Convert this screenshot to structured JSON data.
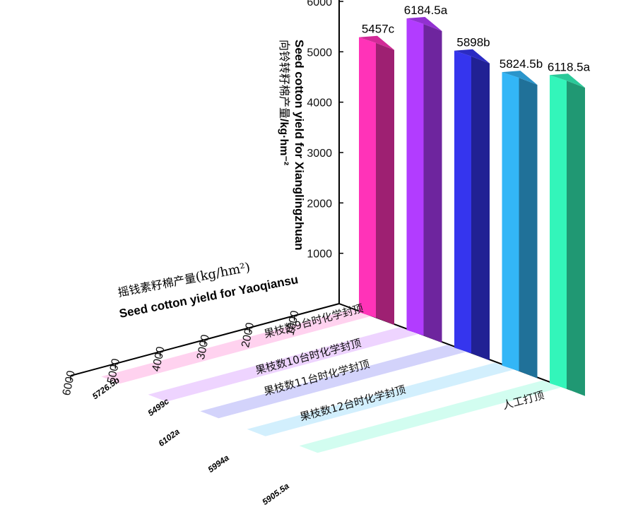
{
  "chart_data": {
    "type": "bar",
    "categories": [
      "果枝数9台时化学封顶",
      "果枝数10台时化学封顶",
      "果枝数11台时化学封顶",
      "果枝数12台时化学封顶",
      "人工打顶"
    ],
    "series": [
      {
        "name": "Xianglingzhuan",
        "values": [
          5457,
          6184.5,
          5898,
          5824.5,
          6118.5
        ],
        "labels": [
          "5457c",
          "6184.5a",
          "5898b",
          "5824.5b",
          "6118.5a"
        ]
      },
      {
        "name": "Yaoqiansu",
        "values": [
          5726.5,
          5499,
          6102,
          5994,
          5905.5
        ],
        "labels": [
          "5726.5b",
          "5499c",
          "6102a",
          "5994a",
          "5905.5a"
        ]
      }
    ],
    "colors": [
      "#ff33b8",
      "#b23cff",
      "#3535ee",
      "#33b6f7",
      "#33f5ba"
    ],
    "vertical_axis": {
      "title_en": "Seed cotton yield for Xianglingzhuan",
      "title_cn": "向铃转籽棉产量",
      "unit": "/kg·hm⁻²",
      "range": [
        0,
        6000
      ],
      "ticks": [
        "1000",
        "2000",
        "3000",
        "4000",
        "5000",
        "6000"
      ]
    },
    "depth_axis": {
      "title_en": "Seed cotton yield for Yaoqiansu",
      "title_cn": "摇钱素籽棉产量",
      "unit": "(kg/hm²)",
      "range": [
        0,
        6000
      ],
      "ticks": [
        "1000",
        "2000",
        "3000",
        "4000",
        "5000",
        "6000"
      ]
    }
  }
}
